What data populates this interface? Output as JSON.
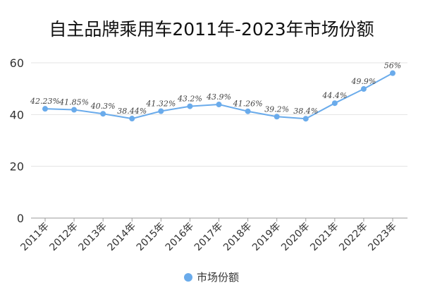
{
  "chart_data": {
    "type": "line",
    "title": "自主品牌乘用车2011年-2023年市场份额",
    "categories": [
      "2011年",
      "2012年",
      "2013年",
      "2014年",
      "2015年",
      "2016年",
      "2017年",
      "2018年",
      "2019年",
      "2020年",
      "2021年",
      "2022年",
      "2023年"
    ],
    "series": [
      {
        "name": "市场份额",
        "values": [
          42.23,
          41.85,
          40.3,
          38.44,
          41.32,
          43.2,
          43.9,
          41.26,
          39.2,
          38.4,
          44.4,
          49.9,
          56
        ],
        "labels": [
          "42.23%",
          "41.85%",
          "40.3%",
          "38.44%",
          "41.32%",
          "43.2%",
          "43.9%",
          "41.26%",
          "39.2%",
          "38.4%",
          "44.4%",
          "49.9%",
          "56%"
        ]
      }
    ],
    "yticks": [
      0,
      20,
      40,
      60
    ],
    "ylim": [
      0,
      60
    ],
    "grid": true,
    "legend": "bottom",
    "color": "#6aabeb"
  }
}
